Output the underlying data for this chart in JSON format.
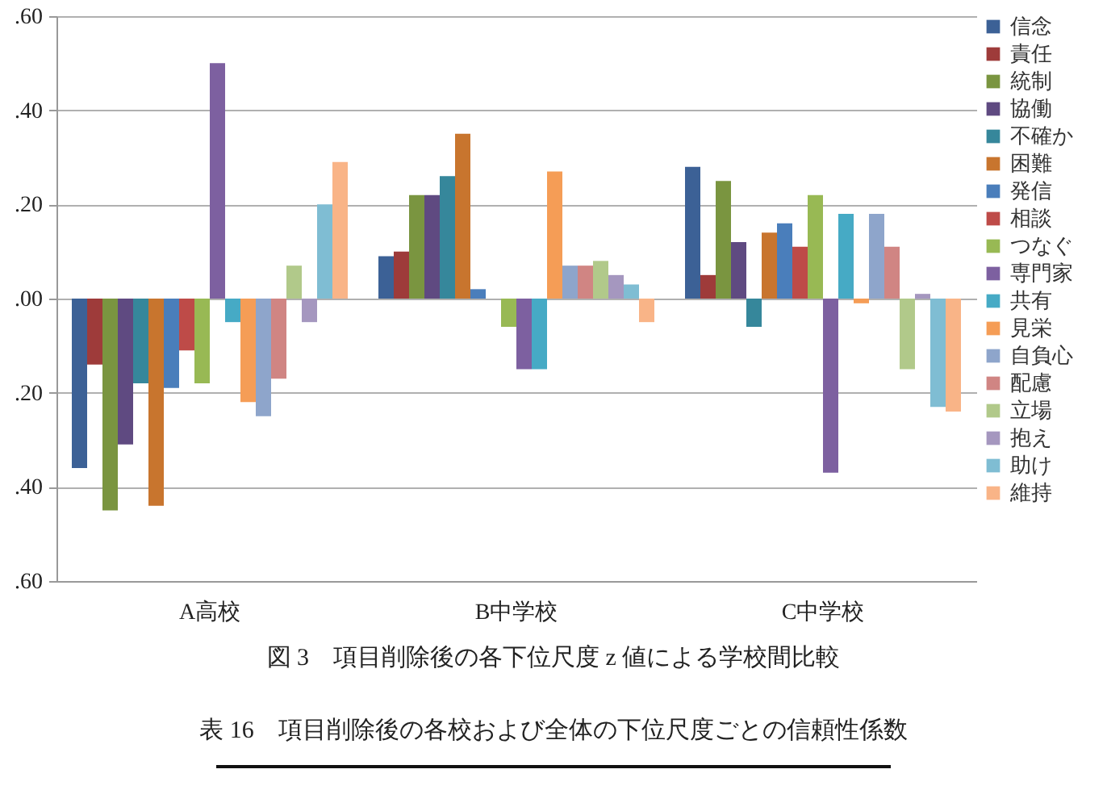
{
  "chart_data": {
    "type": "bar",
    "categories": [
      "A高校",
      "B中学校",
      "C中学校"
    ],
    "series": [
      {
        "name": "信念",
        "color": "#3c6196",
        "values": [
          -0.36,
          0.09,
          0.28
        ]
      },
      {
        "name": "責任",
        "color": "#9e3b3a",
        "values": [
          -0.14,
          0.1,
          0.05
        ]
      },
      {
        "name": "統制",
        "color": "#7a9540",
        "values": [
          -0.45,
          0.22,
          0.25
        ]
      },
      {
        "name": "協働",
        "color": "#5f4a81",
        "values": [
          -0.31,
          0.22,
          0.12
        ]
      },
      {
        "name": "不確か",
        "color": "#36879b",
        "values": [
          -0.18,
          0.26,
          -0.06
        ]
      },
      {
        "name": "困難",
        "color": "#c8752e",
        "values": [
          -0.44,
          0.35,
          0.14
        ]
      },
      {
        "name": "発信",
        "color": "#4a7ebb",
        "values": [
          -0.19,
          0.02,
          0.16
        ]
      },
      {
        "name": "相談",
        "color": "#be4b48",
        "values": [
          -0.11,
          0.0,
          0.11
        ]
      },
      {
        "name": "つなぐ",
        "color": "#98b954",
        "values": [
          -0.18,
          -0.06,
          0.22
        ]
      },
      {
        "name": "専門家",
        "color": "#7d60a0",
        "values": [
          0.5,
          -0.15,
          -0.37
        ]
      },
      {
        "name": "共有",
        "color": "#46aac5",
        "values": [
          -0.05,
          -0.15,
          0.18
        ]
      },
      {
        "name": "見栄",
        "color": "#f59d56",
        "values": [
          -0.22,
          0.27,
          -0.01
        ]
      },
      {
        "name": "自負心",
        "color": "#8ea5cb",
        "values": [
          -0.25,
          0.07,
          0.18
        ]
      },
      {
        "name": "配慮",
        "color": "#d08583",
        "values": [
          -0.17,
          0.07,
          0.11
        ]
      },
      {
        "name": "立場",
        "color": "#b1c98a",
        "values": [
          0.07,
          0.08,
          -0.15
        ]
      },
      {
        "name": "抱え",
        "color": "#a597bf",
        "values": [
          -0.05,
          0.05,
          0.01
        ]
      },
      {
        "name": "助け",
        "color": "#7fbdd3",
        "values": [
          0.2,
          0.03,
          -0.23
        ]
      },
      {
        "name": "維持",
        "color": "#f9b487",
        "values": [
          0.29,
          -0.05,
          -0.24
        ]
      }
    ],
    "ylim": [
      -0.6,
      0.6
    ],
    "yticks": [
      {
        "value": -0.6,
        "label": ".60"
      },
      {
        "value": -0.4,
        "label": ".40"
      },
      {
        "value": -0.2,
        "label": ".20"
      },
      {
        "value": 0,
        "label": ".00"
      },
      {
        "value": 0.2,
        "label": ".20"
      },
      {
        "value": 0.4,
        "label": ".40"
      },
      {
        "value": 0.6,
        "label": ".60"
      }
    ],
    "grid": "y",
    "legend": "right",
    "annotations": [
      "図 3　項目削除後の各下位尺度 z 値による学校間比較",
      "表 16　項目削除後の各校および全体の下位尺度ごとの信頼性係数"
    ]
  }
}
